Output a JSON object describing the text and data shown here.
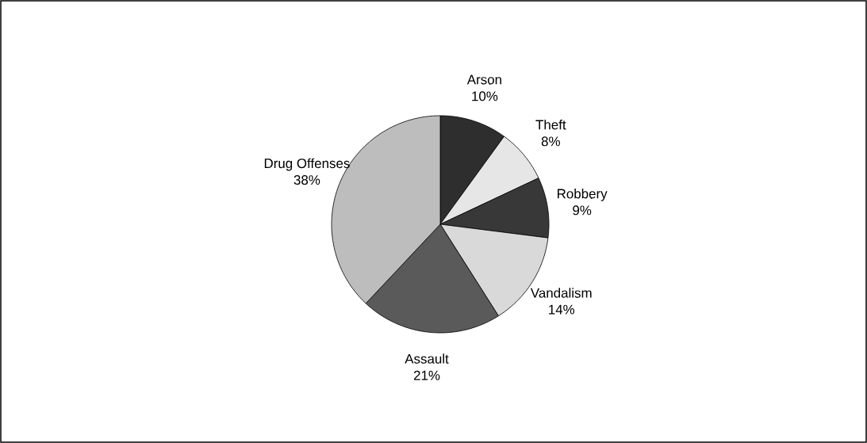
{
  "chart_data": {
    "type": "pie",
    "categories": [
      "Arson",
      "Theft",
      "Robbery",
      "Vandalism",
      "Assault",
      "Drug Offenses"
    ],
    "values": [
      10,
      8,
      9,
      14,
      21,
      38
    ],
    "value_labels": [
      "10%",
      "8%",
      "9%",
      "14%",
      "21%",
      "38%"
    ],
    "colors": [
      "#2e2e2e",
      "#e6e6e6",
      "#383838",
      "#d9d9d9",
      "#5a5a5a",
      "#bdbdbd"
    ]
  }
}
